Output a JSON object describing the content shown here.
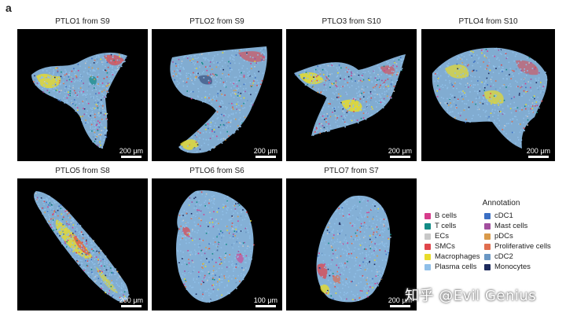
{
  "figure_label": "a",
  "panels": [
    {
      "title": "PTLO1 from S9",
      "scale_label": "200 μm"
    },
    {
      "title": "PTLO2 from S9",
      "scale_label": "200 μm"
    },
    {
      "title": "PTLO3 from S10",
      "scale_label": "200 μm"
    },
    {
      "title": "PTLO4 from S10",
      "scale_label": "200 μm"
    },
    {
      "title": "PTLO5 from S8",
      "scale_label": "200 μm"
    },
    {
      "title": "PTLO6 from S6",
      "scale_label": "100 μm"
    },
    {
      "title": "PTLO7 from S7",
      "scale_label": "200 μm"
    }
  ],
  "legend": {
    "title": "Annotation",
    "col1": [
      {
        "label": "B cells",
        "color": "#d63c8c"
      },
      {
        "label": "T cells",
        "color": "#138c86"
      },
      {
        "label": "ECs",
        "color": "#c8c8c8"
      },
      {
        "label": "SMCs",
        "color": "#e0464b"
      },
      {
        "label": "Macrophages",
        "color": "#e8dc2c"
      },
      {
        "label": "Plasma cells",
        "color": "#8fbfe8"
      }
    ],
    "col2": [
      {
        "label": "cDC1",
        "color": "#3b6fc4"
      },
      {
        "label": "Mast cells",
        "color": "#a24f9e"
      },
      {
        "label": "pDCs",
        "color": "#d99a4a"
      },
      {
        "label": "Proliferative cells",
        "color": "#e06e4f"
      },
      {
        "label": "cDC2",
        "color": "#6a97c4"
      },
      {
        "label": "Monocytes",
        "color": "#1d2a5c"
      }
    ]
  },
  "watermark": "知乎 @Evil Genius"
}
